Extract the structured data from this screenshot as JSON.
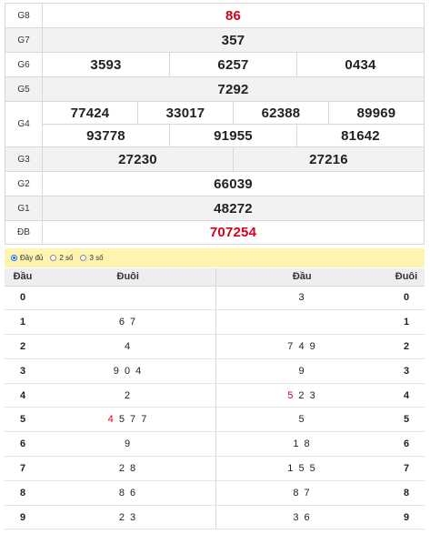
{
  "prizes": {
    "g8": {
      "label": "G8",
      "values": [
        "86"
      ]
    },
    "g7": {
      "label": "G7",
      "values": [
        "357"
      ]
    },
    "g6": {
      "label": "G6",
      "values": [
        "3593",
        "6257",
        "0434"
      ]
    },
    "g5": {
      "label": "G5",
      "values": [
        "7292"
      ]
    },
    "g4": {
      "label": "G4",
      "values": [
        "77424",
        "33017",
        "62388",
        "89969",
        "93778",
        "91955",
        "81642"
      ]
    },
    "g3": {
      "label": "G3",
      "values": [
        "27230",
        "27216"
      ]
    },
    "g2": {
      "label": "G2",
      "values": [
        "66039"
      ]
    },
    "g1": {
      "label": "G1",
      "values": [
        "48272"
      ]
    },
    "db": {
      "label": "ĐB",
      "values": [
        "707254"
      ]
    }
  },
  "options": {
    "selected": "full",
    "items": [
      {
        "id": "full",
        "label": "Đầy đủ"
      },
      {
        "id": "two",
        "label": "2 số"
      },
      {
        "id": "three",
        "label": "3 số"
      }
    ]
  },
  "loto": {
    "headers": {
      "head": "Đầu",
      "tail": "Đuôi",
      "head2": "Đầu",
      "tail2": "Đuôi"
    },
    "rows": [
      {
        "digit": "0",
        "tails": "",
        "heads": "3",
        "hl_tail": "",
        "hl_head": ""
      },
      {
        "digit": "1",
        "tails": "6 7",
        "heads": "",
        "hl_tail": "",
        "hl_head": ""
      },
      {
        "digit": "2",
        "tails": "4",
        "heads": "7 4 9",
        "hl_tail": "",
        "hl_head": ""
      },
      {
        "digit": "3",
        "tails": "9 0 4",
        "heads": "9",
        "hl_tail": "",
        "hl_head": ""
      },
      {
        "digit": "4",
        "tails": "2",
        "heads": " 2 3",
        "hl_tail": "",
        "hl_head": "5"
      },
      {
        "digit": "5",
        "tails": " 5 7 7",
        "heads": "5",
        "hl_tail": "4",
        "hl_head": ""
      },
      {
        "digit": "6",
        "tails": "9",
        "heads": "1 8",
        "hl_tail": "",
        "hl_head": ""
      },
      {
        "digit": "7",
        "tails": "2 8",
        "heads": "1 5 5",
        "hl_tail": "",
        "hl_head": ""
      },
      {
        "digit": "8",
        "tails": "8 6",
        "heads": "8 7",
        "hl_tail": "",
        "hl_head": ""
      },
      {
        "digit": "9",
        "tails": "2 3",
        "heads": "3 6",
        "hl_tail": "",
        "hl_head": ""
      }
    ]
  },
  "colors": {
    "accent_red": "#d0021b",
    "option_bar": "#fff3b0",
    "radio_selected": "#1a73e8"
  }
}
